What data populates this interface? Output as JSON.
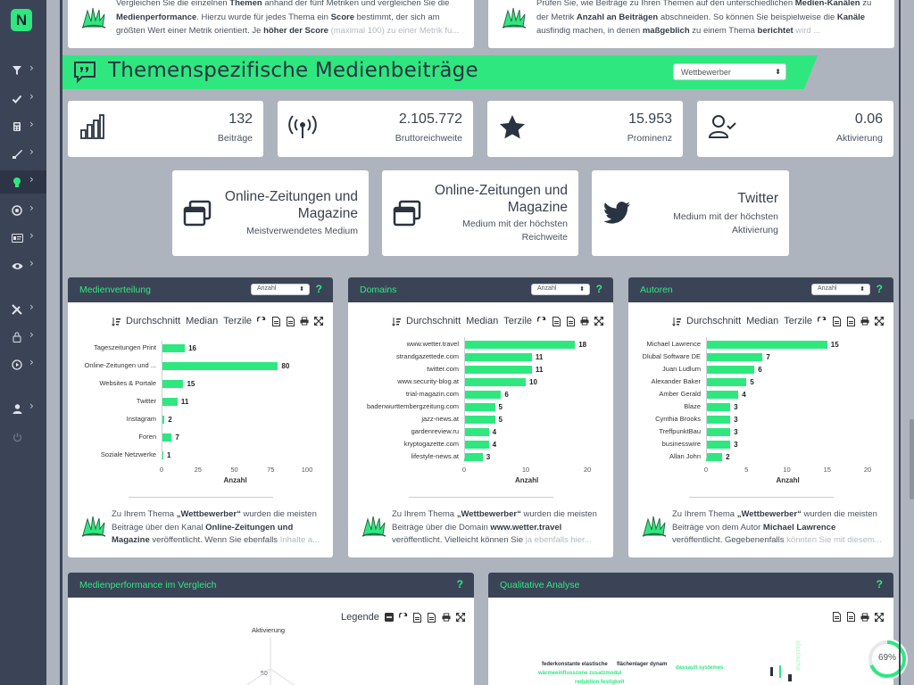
{
  "app": {
    "logo_letter": "N"
  },
  "sidebar": {
    "items": [
      {
        "icon": "filter-icon"
      },
      {
        "icon": "check-icon"
      },
      {
        "icon": "calculator-icon"
      },
      {
        "icon": "rocket-icon"
      },
      {
        "icon": "lightbulb-icon",
        "active": true
      },
      {
        "icon": "target-icon"
      },
      {
        "icon": "id-card-icon"
      },
      {
        "icon": "eye-icon"
      },
      {
        "icon": "tools-icon"
      },
      {
        "icon": "lock-icon"
      },
      {
        "icon": "play-icon"
      },
      {
        "icon": "user-icon"
      },
      {
        "icon": "power-icon"
      }
    ],
    "chevron": "›"
  },
  "intro": {
    "left": {
      "p1": "Vergleichen Sie die einzelnen ",
      "b1": "Themen",
      "p2": " anhand der fünf Metriken und vergleichen Sie die ",
      "b2": "Medienperformance",
      "p3": ". Hierzu wurde für jedes Thema ein ",
      "b3": "Score",
      "p4": " bestimmt, der sich am größten Wert einer Metrik orientiert. Je ",
      "b4": "höher der Score",
      "fade": " (maximal 100) zu einer Metrik fu..."
    },
    "right": {
      "p1": "Prüfen Sie, wie Beiträge zu Ihren Themen auf den unterschiedlichen ",
      "b1": "Medien-Kanälen",
      "p2": " zu der Metrik ",
      "b2": "Anzahl an Beiträgen",
      "p3": " abschneiden. So können Sie beispielweise die ",
      "b3": "Kanäle",
      "p4": " ausfindig machen, in denen ",
      "b4": "maßgeblich",
      "p5": " zu einem Thema ",
      "b5": "berichtet",
      "fade": " wird ..."
    }
  },
  "banner": {
    "title": "Themenspezifische Medienbeiträge",
    "select_value": "Wettbewerber",
    "select_arrow": "⬍"
  },
  "stats": [
    {
      "value": "132",
      "label": "Beiträge",
      "icon": "bar-chart-icon"
    },
    {
      "value": "2.105.772",
      "label": "Bruttoreichweite",
      "icon": "broadcast-icon"
    },
    {
      "value": "15.953",
      "label": "Prominenz",
      "icon": "star-icon"
    },
    {
      "value": "0.06",
      "label": "Aktivierung",
      "icon": "user-check-icon"
    }
  ],
  "media": [
    {
      "title_l1": "Online-Zeitungen und",
      "title_l2": "Magazine",
      "sub_l1": "Meistverwendetes Medium",
      "sub_l2": "",
      "icon": "windows-icon"
    },
    {
      "title_l1": "Online-Zeitungen und",
      "title_l2": "Magazine",
      "sub_l1": "Medium mit der höchsten",
      "sub_l2": "Reichweite",
      "icon": "windows-icon"
    },
    {
      "title_l1": "Twitter",
      "title_l2": "",
      "sub_l1": "Medium mit der höchsten",
      "sub_l2": "Aktivierung",
      "icon": "twitter-icon"
    }
  ],
  "toolbar": {
    "durchschnitt": "Durchschnitt",
    "median": "Median",
    "terzile": "Terzile",
    "legende": "Legende"
  },
  "panels": {
    "medienverteilung": {
      "title": "Medienverteilung",
      "select": "Anzahl",
      "help": "?"
    },
    "domains": {
      "title": "Domains",
      "select": "Anzahl",
      "help": "?"
    },
    "autoren": {
      "title": "Autoren",
      "select": "Anzahl",
      "help": "?"
    },
    "performance": {
      "title": "Medienperformance im Vergleich",
      "help": "?",
      "radar_label": "Aktivierung",
      "radar_tick": "50"
    },
    "qualitativ": {
      "title": "Qualitative Analyse",
      "help": "?"
    }
  },
  "chart_data": [
    {
      "type": "bar",
      "categories": [
        "Tageszeitungen Print",
        "Online-Zeitungen und ...",
        "Websites & Portale",
        "Twitter",
        "Instagram",
        "Foren",
        "Soziale Netzwerke"
      ],
      "values": [
        16,
        80,
        15,
        11,
        2,
        7,
        1
      ],
      "xlabel": "Anzahl",
      "ylabel": "",
      "xlim": [
        0,
        100
      ],
      "ticks": [
        0,
        25,
        50,
        75,
        100
      ]
    },
    {
      "type": "bar",
      "categories": [
        "www.wetter.travel",
        "strandgazettede.com",
        "twitter.com",
        "www.security-blog.at",
        "trial-magazin.com",
        "badenwurttembergzeitung.com",
        "jazz-news.at",
        "gardenreview.ru",
        "kryptogazette.com",
        "lifestyle-news.at"
      ],
      "values": [
        18,
        11,
        11,
        10,
        6,
        5,
        5,
        4,
        4,
        3
      ],
      "xlabel": "Anzahl",
      "ylabel": "",
      "xlim": [
        0,
        20
      ],
      "ticks": [
        0,
        10,
        20
      ]
    },
    {
      "type": "bar",
      "categories": [
        "Michael Lawrence",
        "Dlubal Software DE",
        "Juan Ludlum",
        "Alexander Baker",
        "Amber Gerald",
        "Blaze",
        "Cynthia Brooks",
        "TreffpunktBau",
        "businesswire",
        "Allan John"
      ],
      "values": [
        15,
        7,
        6,
        5,
        4,
        3,
        3,
        3,
        3,
        2
      ],
      "xlabel": "Anzahl",
      "ylabel": "",
      "xlim": [
        0,
        20
      ],
      "ticks": [
        0,
        5,
        10,
        15,
        20
      ]
    }
  ],
  "descriptions": {
    "medien": {
      "p1": "Zu Ihrem Thema ",
      "b1": "„Wettbewerber“",
      "p2": " wurden die meisten Beiträge über den Kanal ",
      "b2": "Online-Zeitungen und Magazine",
      "p3": " veröffentlicht. Wenn Sie ebenfalls ",
      "fade": "Inhalte a..."
    },
    "domains": {
      "p1": "Zu Ihrem Thema ",
      "b1": "„Wettbewerber“",
      "p2": " wurden die meisten Beiträge über die Domain ",
      "b2": "www.wetter.travel",
      "p3": " veröffentlicht. Vielleicht können Sie ",
      "fade": "ja ebenfalls hier..."
    },
    "autoren": {
      "p1": "Zu Ihrem Thema ",
      "b1": "„Wettbewerber“",
      "p2": " wurden die meisten Beiträge von dem Autor ",
      "b2": "Michael Lawrence",
      "p3": " veröffentlicht. Gegebenenfalls ",
      "fade": "könnten Sie mit diesem..."
    }
  },
  "wordcloud": [
    "federkonstante elastische",
    "flächenlager dynam",
    "dassault systemes",
    "wärmeeinflusszone zusatzmodul",
    "reduktion festigkeit",
    "elastische"
  ],
  "progress": {
    "value": "69%",
    "fraction": 0.69
  },
  "colors": {
    "accent": "#2ee87f",
    "dark": "#3b4457",
    "page": "#aeb4bd"
  }
}
